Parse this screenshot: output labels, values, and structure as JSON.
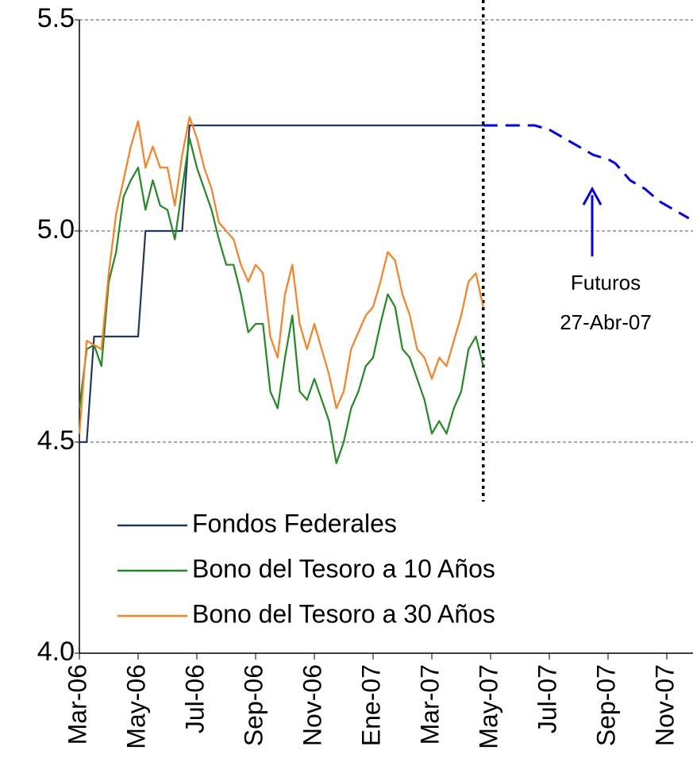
{
  "chart_data": {
    "type": "line",
    "categories": [
      "Mar-06",
      null,
      null,
      null,
      null,
      null,
      null,
      null,
      "May-06",
      null,
      null,
      null,
      null,
      null,
      null,
      null,
      "Jul-06",
      null,
      null,
      null,
      null,
      null,
      null,
      null,
      "Sep-06",
      null,
      null,
      null,
      null,
      null,
      null,
      null,
      "Nov-06",
      null,
      null,
      null,
      null,
      null,
      null,
      null,
      "Ene-07",
      null,
      null,
      null,
      null,
      null,
      null,
      null,
      "Mar-07",
      null,
      null,
      null,
      null,
      null,
      null,
      null,
      "May-07",
      null,
      null,
      null,
      null,
      null,
      null,
      null,
      "Jul-07",
      null,
      null,
      null,
      null,
      null,
      null,
      null,
      "Sep-07",
      null,
      null,
      null,
      null,
      null,
      null,
      null,
      "Nov-07",
      null,
      null,
      null
    ],
    "series": [
      {
        "name": "Fondos Federales",
        "color": "#1f3864",
        "values": [
          4.5,
          4.5,
          4.75,
          4.75,
          4.75,
          4.75,
          4.75,
          4.75,
          4.75,
          5,
          5,
          5,
          5,
          5,
          5,
          5.25,
          5.25,
          5.25,
          5.25,
          5.25,
          5.25,
          5.25,
          5.25,
          5.25,
          5.25,
          5.25,
          5.25,
          5.25,
          5.25,
          5.25,
          5.25,
          5.25,
          5.25,
          5.25,
          5.25,
          5.25,
          5.25,
          5.25,
          5.25,
          5.25,
          5.25,
          5.25,
          5.25,
          5.25,
          5.25,
          5.25,
          5.25,
          5.25,
          5.25,
          5.25,
          5.25,
          5.25,
          5.25,
          5.25,
          5.25,
          5.25,
          null,
          null,
          null,
          null,
          null,
          null,
          null,
          null,
          null,
          null,
          null,
          null,
          null,
          null,
          null,
          null,
          null,
          null,
          null,
          null,
          null,
          null,
          null,
          null,
          null,
          null,
          null,
          null
        ]
      },
      {
        "name": "Bono del Tesoro a 10 Años",
        "color": "#1e8c1e",
        "values": [
          4.58,
          4.72,
          4.73,
          4.68,
          4.88,
          4.95,
          5.08,
          5.12,
          5.15,
          5.05,
          5.12,
          5.06,
          5.05,
          4.98,
          5.1,
          5.22,
          5.15,
          5.1,
          5.05,
          4.98,
          4.92,
          4.92,
          4.85,
          4.76,
          4.78,
          4.78,
          4.62,
          4.58,
          4.7,
          4.8,
          4.62,
          4.6,
          4.65,
          4.6,
          4.55,
          4.45,
          4.5,
          4.58,
          4.62,
          4.68,
          4.7,
          4.78,
          4.85,
          4.82,
          4.72,
          4.7,
          4.65,
          4.6,
          4.52,
          4.55,
          4.52,
          4.58,
          4.62,
          4.72,
          4.75,
          4.68,
          null,
          null,
          null,
          null,
          null,
          null,
          null,
          null,
          null,
          null,
          null,
          null,
          null,
          null,
          null,
          null,
          null,
          null,
          null,
          null,
          null,
          null,
          null,
          null,
          null,
          null,
          null,
          null
        ]
      },
      {
        "name": "Bono del Tesoro a 30 Años",
        "color": "#ff7f1e",
        "values": [
          4.52,
          4.74,
          4.73,
          4.72,
          4.9,
          5.04,
          5.12,
          5.2,
          5.26,
          5.15,
          5.2,
          5.15,
          5.15,
          5.06,
          5.18,
          5.27,
          5.22,
          5.15,
          5.1,
          5.02,
          5,
          4.98,
          4.92,
          4.88,
          4.92,
          4.9,
          4.75,
          4.7,
          4.85,
          4.92,
          4.78,
          4.72,
          4.78,
          4.72,
          4.66,
          4.58,
          4.62,
          4.72,
          4.76,
          4.8,
          4.82,
          4.88,
          4.95,
          4.93,
          4.85,
          4.8,
          4.72,
          4.7,
          4.65,
          4.7,
          4.68,
          4.74,
          4.8,
          4.88,
          4.9,
          4.82,
          null,
          null,
          null,
          null,
          null,
          null,
          null,
          null,
          null,
          null,
          null,
          null,
          null,
          null,
          null,
          null,
          null,
          null,
          null,
          null,
          null,
          null,
          null,
          null,
          null,
          null,
          null,
          null
        ]
      },
      {
        "color": "#0000ff",
        "dashed": true,
        "values": [
          null,
          null,
          null,
          null,
          null,
          null,
          null,
          null,
          null,
          null,
          null,
          null,
          null,
          null,
          null,
          null,
          null,
          null,
          null,
          null,
          null,
          null,
          null,
          null,
          null,
          null,
          null,
          null,
          null,
          null,
          null,
          null,
          null,
          null,
          null,
          null,
          null,
          null,
          null,
          null,
          null,
          null,
          null,
          null,
          null,
          null,
          null,
          null,
          null,
          null,
          null,
          null,
          null,
          null,
          null,
          5.25,
          5.25,
          5.25,
          5.25,
          5.25,
          5.25,
          5.25,
          5.25,
          5.245,
          5.24,
          5.23,
          5.22,
          5.21,
          5.2,
          5.19,
          5.18,
          5.175,
          5.17,
          5.16,
          5.14,
          5.12,
          5.11,
          5.1,
          5.085,
          5.07,
          5.06,
          5.05,
          5.04,
          5.03
        ]
      }
    ],
    "annotation": [
      "Futuros",
      "27-Abr-07"
    ],
    "ylim": [
      4.0,
      5.5
    ],
    "yticks": [
      {
        "value": 4,
        "label": "4.0"
      },
      4.5,
      {
        "value": 5,
        "label": "5.0"
      },
      5.5
    ],
    "grid": true
  }
}
